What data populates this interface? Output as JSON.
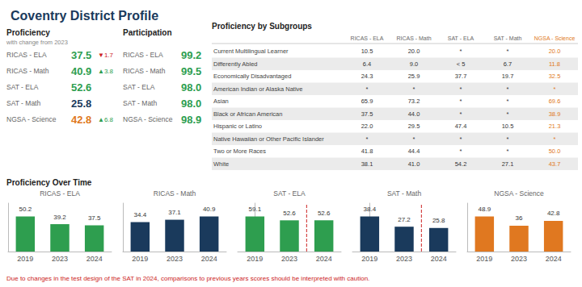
{
  "title": "Coventry District Profile",
  "annotations": [
    {
      "text": "Proficiency Over Time"
    },
    {
      "text": "Due to changes in the test design of the SAT in 2024, comparisons to previous years scores should be interpreted with caution.",
      "color": "#cc2222"
    }
  ],
  "chart_data": [
    {
      "type": "table",
      "title": "Proficiency",
      "subtitle": "with change from 2023",
      "categories": [
        "RICAS - ELA",
        "RICAS - Math",
        "SAT - ELA",
        "SAT - Math",
        "NGSA - Science"
      ],
      "values": [
        37.5,
        40.9,
        52.6,
        25.8,
        42.8
      ],
      "value_labels": [
        "37.5",
        "40.9",
        "52.6",
        "25.8",
        "42.8"
      ],
      "colors": [
        "#2e9e4f",
        "#2e9e4f",
        "#2e9e4f",
        "#1a3a5c",
        "#e07820"
      ],
      "annotations": [
        {
          "text": "▼1.7",
          "color": "#cc2222"
        },
        {
          "text": "▲3.8",
          "color": "#2e9e4f"
        },
        null,
        null,
        {
          "text": "▲6.8",
          "color": "#2e9e4f"
        }
      ]
    },
    {
      "type": "table",
      "title": "Participation",
      "categories": [
        "RICAS - ELA",
        "RICAS - Math",
        "SAT - ELA",
        "SAT - Math",
        "NGSA - Science"
      ],
      "values": [
        99.2,
        99.5,
        98.0,
        98.0,
        98.9
      ],
      "value_labels": [
        "99.2",
        "99.5",
        "98.0",
        "98.0",
        "98.9"
      ],
      "colors": [
        "#2e9e4f",
        "#2e9e4f",
        "#2e9e4f",
        "#2e9e4f",
        "#2e9e4f"
      ]
    },
    {
      "type": "table",
      "title": "Proficiency by Subgroups",
      "categories": [
        "Current Multilingual Learner",
        "Differently Abled",
        "Economically Disadvantaged",
        "American Indian or Alaska Native",
        "Asian",
        "Black or African American",
        "Hispanic or Latino",
        "Native Hawaiian or Other Pacific Islander",
        "Two or More Races",
        "White"
      ],
      "series": [
        {
          "name": "RICAS - ELA",
          "values": [
            10.5,
            6.4,
            24.3,
            null,
            65.9,
            37.5,
            22.0,
            null,
            41.8,
            38.1
          ],
          "value_labels": [
            "10.5",
            "6.4",
            "24.3",
            "*",
            "65.9",
            "37.5",
            "22.0",
            "*",
            "41.8",
            "38.1"
          ]
        },
        {
          "name": "RICAS - Math",
          "values": [
            20.0,
            9.0,
            25.9,
            null,
            73.2,
            44.0,
            29.5,
            null,
            44.4,
            41.0
          ],
          "value_labels": [
            "20.0",
            "9.0",
            "25.9",
            "*",
            "73.2",
            "44.0",
            "29.5",
            "*",
            "44.4",
            "41.0"
          ]
        },
        {
          "name": "SAT - ELA",
          "values": [
            null,
            null,
            37.7,
            null,
            null,
            null,
            47.4,
            null,
            null,
            54.2
          ],
          "value_labels": [
            "*",
            "< 5",
            "37.7",
            "*",
            "*",
            "*",
            "47.4",
            "*",
            "*",
            "54.2"
          ]
        },
        {
          "name": "SAT - Math",
          "values": [
            null,
            6.7,
            19.7,
            null,
            null,
            null,
            10.5,
            null,
            null,
            27.1
          ],
          "value_labels": [
            "*",
            "6.7",
            "19.7",
            "*",
            "*",
            "*",
            "10.5",
            "*",
            "*",
            "27.1"
          ]
        },
        {
          "name": "NGSA - Science",
          "color": "#e07820",
          "values": [
            20.0,
            11.8,
            32.5,
            null,
            69.6,
            38.9,
            21.3,
            null,
            50.0,
            43.7
          ],
          "value_labels": [
            "20.0",
            "11.8",
            "32.5",
            "*",
            "69.6",
            "38.9",
            "21.3",
            "*",
            "50.0",
            "43.7"
          ]
        }
      ]
    },
    {
      "type": "bar",
      "title": "RICAS - ELA",
      "categories": [
        "2019",
        "2023",
        "2024"
      ],
      "values": [
        50.2,
        39.2,
        37.5
      ],
      "color": "#2e9e4f",
      "data_labels": true,
      "ylim": [
        0,
        69.276
      ],
      "yticks": [],
      "tick_labels": "x"
    },
    {
      "type": "bar",
      "title": "RICAS - Math",
      "categories": [
        "2019",
        "2023",
        "2024"
      ],
      "values": [
        34.4,
        37.1,
        40.9
      ],
      "color": "#1a3a5c",
      "data_labels": true,
      "ylim": [
        0,
        56.442
      ],
      "yticks": [],
      "tick_labels": "x"
    },
    {
      "type": "bar",
      "title": "SAT - ELA",
      "categories": [
        "2019",
        "2023",
        "2024"
      ],
      "values": [
        59.1,
        52.6,
        52.6
      ],
      "color": "#2e9e4f",
      "data_labels": true,
      "ylim": [
        0,
        81.558
      ],
      "yticks": [],
      "tick_labels": "x",
      "divider": {
        "after": "2023",
        "color": "#cc2222",
        "line_style": "dashed"
      }
    },
    {
      "type": "bar",
      "title": "SAT - Math",
      "categories": [
        "2019",
        "2023",
        "2024"
      ],
      "values": [
        38.4,
        27.2,
        25.8
      ],
      "color": "#1a3a5c",
      "data_labels": true,
      "ylim": [
        0,
        52.992
      ],
      "yticks": [],
      "tick_labels": "x",
      "divider": {
        "after": "2023",
        "color": "#cc2222",
        "line_style": "dashed"
      }
    },
    {
      "type": "bar",
      "title": "NGSA - Science",
      "categories": [
        "2019",
        "2023",
        "2024"
      ],
      "values": [
        48.9,
        36.0,
        42.8
      ],
      "color": "#e07820",
      "data_labels": true,
      "ylim": [
        0,
        67.482
      ],
      "yticks": [],
      "tick_labels": "x"
    }
  ]
}
